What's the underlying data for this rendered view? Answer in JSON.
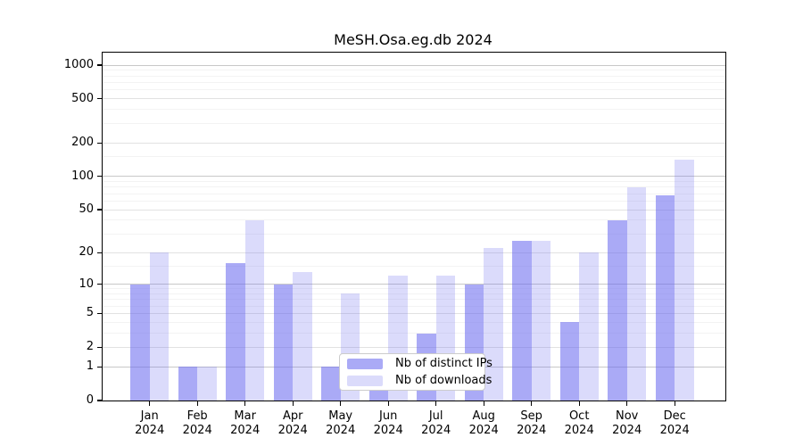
{
  "title": "MeSH.Osa.eg.db 2024",
  "chart_data": {
    "type": "bar",
    "title": "MeSH.Osa.eg.db 2024",
    "year": "2024",
    "months": [
      "Jan",
      "Feb",
      "Mar",
      "Apr",
      "May",
      "Jun",
      "Jul",
      "Aug",
      "Sep",
      "Oct",
      "Nov",
      "Dec"
    ],
    "series": [
      {
        "name": "Nb of distinct IPs",
        "values": [
          10,
          1,
          16,
          10,
          1,
          1,
          3,
          10,
          26,
          4,
          40,
          67
        ]
      },
      {
        "name": "Nb of downloads",
        "values": [
          20,
          1,
          40,
          13,
          8,
          12,
          12,
          22,
          26,
          20,
          80,
          141
        ]
      }
    ],
    "yscale": "log1p",
    "yticks": [
      0,
      1,
      2,
      5,
      10,
      20,
      50,
      100,
      200,
      500,
      1000
    ],
    "ylim": [
      0,
      1050
    ],
    "grid": true,
    "legend_position": "lower center",
    "colors": {
      "distinct_ips_bar": "rgba(105,105,240,0.57)",
      "downloads_bar": "rgba(105,105,240,0.24)",
      "major_gridline": "#c8c8c8",
      "mid_gridline": "#e2e2e2",
      "minor_gridline": "#f3f3f3",
      "axis": "#000000",
      "legend_border": "#cccccc"
    }
  }
}
